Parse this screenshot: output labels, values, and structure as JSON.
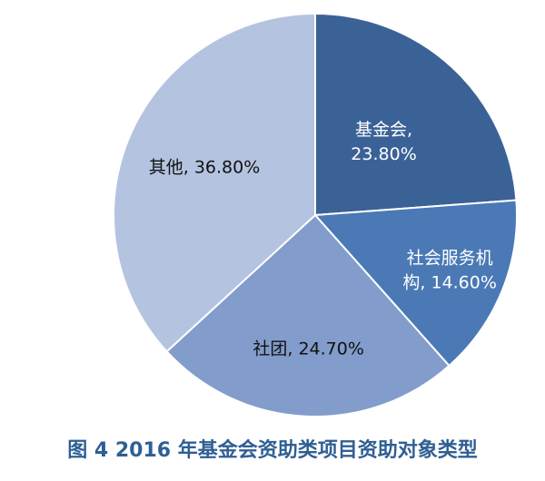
{
  "chart_data": {
    "type": "pie",
    "categories": [
      "基金会",
      "社会服务机构",
      "社团",
      "其他"
    ],
    "values": [
      23.8,
      14.6,
      24.7,
      36.8
    ],
    "unit": "%",
    "labels": [
      [
        "基金会,",
        "23.80%"
      ],
      [
        "社会服务机",
        "构, 14.60%"
      ],
      [
        "社团, 24.70%"
      ],
      [
        "其他, 36.80%"
      ]
    ],
    "colors": [
      "#3b6296",
      "#4a79b5",
      "#829ccc",
      "#b4c3df"
    ],
    "label_colors": [
      "#ffffff",
      "#ffffff",
      "#111111",
      "#111111"
    ],
    "start_angle_deg": 0,
    "direction": "clockwise"
  },
  "caption": "图 4 2016 年基金会资助类项目资助对象类型"
}
